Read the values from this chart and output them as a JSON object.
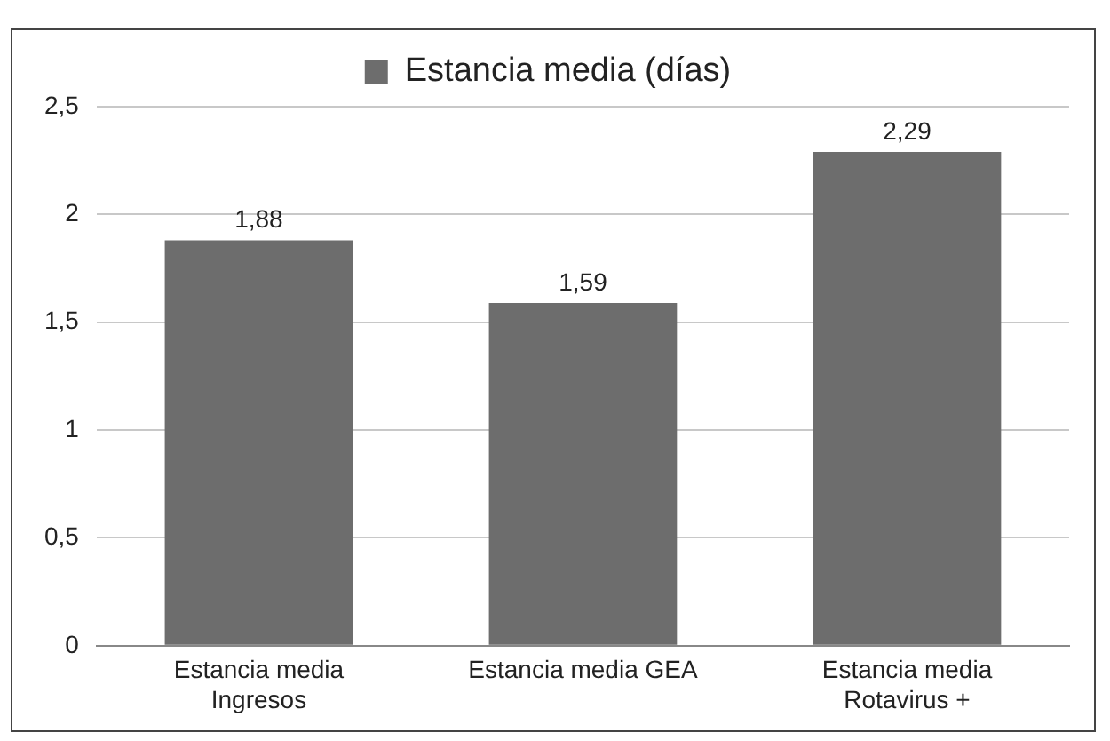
{
  "chart_data": {
    "type": "bar",
    "categories": [
      "Estancia media Ingresos",
      "Estancia media GEA",
      "Estancia media Rotavirus +"
    ],
    "series": [
      {
        "name": "Estancia media (días)",
        "color": "#6d6d6d",
        "values": [
          1.88,
          1.59,
          2.29
        ],
        "value_labels": [
          "1,88",
          "1,59",
          "2,29"
        ]
      }
    ],
    "ylim": [
      0,
      2.5
    ],
    "yticks": [
      0,
      {
        "value": 0.5,
        "label": "0,5"
      },
      1,
      {
        "value": 1.5,
        "label": "1,5"
      },
      2,
      {
        "value": 2.5,
        "label": "2,5"
      }
    ],
    "grid": "y",
    "legend": "top"
  }
}
